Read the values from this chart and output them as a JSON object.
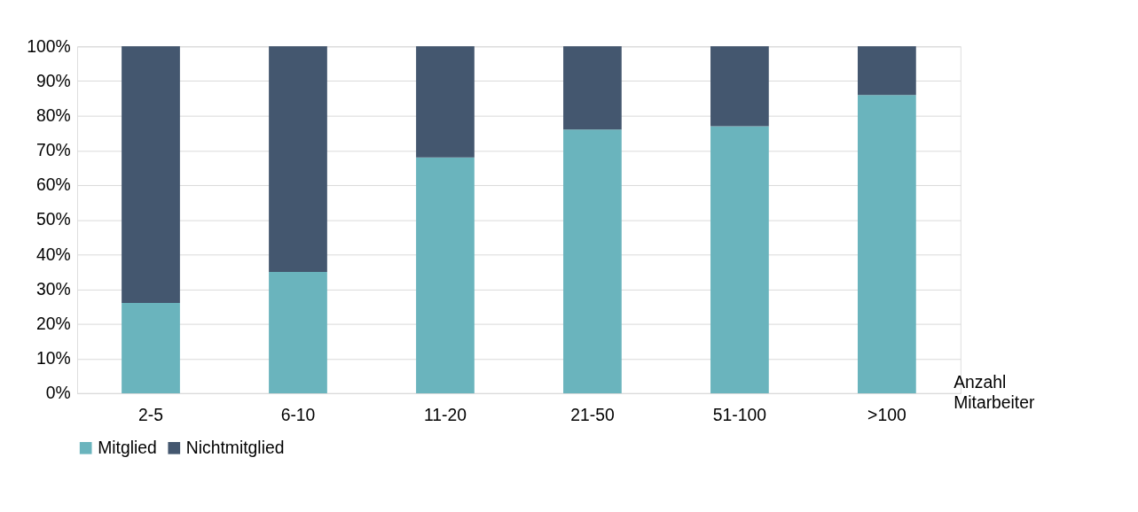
{
  "chart_data": {
    "type": "bar",
    "stacked": true,
    "xlabel": "Anzahl Mitarbeiter",
    "categories": [
      "2-5",
      "6-10",
      "11-20",
      "21-50",
      "51-100",
      ">100"
    ],
    "series": [
      {
        "name": "Mitglied",
        "color": "#6ab4bd",
        "values": [
          26,
          35,
          68,
          76,
          77,
          86
        ]
      },
      {
        "name": "Nichtmitglied",
        "color": "#44576f",
        "values": [
          74,
          65,
          32,
          24,
          23,
          14
        ]
      }
    ],
    "ylim": [
      0,
      100
    ],
    "yticks": [
      {
        "value": 0,
        "label": "0%"
      },
      {
        "value": 10,
        "label": "10%"
      },
      {
        "value": 20,
        "label": "20%"
      },
      {
        "value": 30,
        "label": "30%"
      },
      {
        "value": 40,
        "label": "40%"
      },
      {
        "value": 50,
        "label": "50%"
      },
      {
        "value": 60,
        "label": "60%"
      },
      {
        "value": 70,
        "label": "70%"
      },
      {
        "value": 80,
        "label": "80%"
      },
      {
        "value": 90,
        "label": "90%"
      },
      {
        "value": 100,
        "label": "100%"
      }
    ],
    "grid": "y",
    "legend": "bottom"
  }
}
